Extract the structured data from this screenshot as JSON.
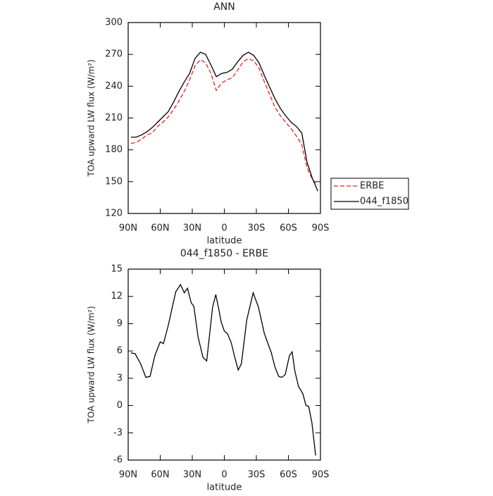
{
  "chart_data": [
    {
      "type": "line",
      "title": "ANN",
      "xlabel": "latitude",
      "ylabel": "TOA upward LW flux (W/m²)",
      "x": [
        87.5,
        82.5,
        77.5,
        72.5,
        67.5,
        62.5,
        57.5,
        52.5,
        47.5,
        42.5,
        37.5,
        32.5,
        27.5,
        22.5,
        17.5,
        12.5,
        7.5,
        2.5,
        -2.5,
        -7.5,
        -12.5,
        -17.5,
        -22.5,
        -27.5,
        -32.5,
        -37.5,
        -42.5,
        -47.5,
        -52.5,
        -57.5,
        -62.5,
        -67.5,
        -72.5,
        -77.5,
        -82.5,
        -87.5
      ],
      "series": [
        {
          "name": "ERBE",
          "color": "#e8221c",
          "linestyle": "dashed",
          "values": [
            186,
            187,
            190,
            194,
            196,
            202,
            206,
            211,
            218,
            226,
            235,
            246,
            259,
            265,
            262,
            252,
            236,
            243,
            246,
            248,
            255,
            263,
            266,
            264,
            257,
            244,
            232,
            220,
            212,
            206,
            200,
            193,
            185,
            163,
            152,
            147
          ]
        },
        {
          "name": "044_f1850",
          "color": "#000000",
          "linestyle": "solid",
          "values": [
            192,
            192,
            194,
            197,
            201,
            206,
            211,
            216,
            225,
            235,
            244,
            252,
            266,
            272,
            270,
            260,
            249,
            252,
            253,
            256,
            263,
            269,
            272,
            269,
            262,
            250,
            239,
            228,
            219,
            212,
            206,
            202,
            196,
            168,
            153,
            141
          ]
        }
      ],
      "xlim": [
        90,
        -90
      ],
      "xticks": [
        {
          "value": 90,
          "label": "90N"
        },
        {
          "value": 60,
          "label": "60N"
        },
        {
          "value": 30,
          "label": "30N"
        },
        0,
        {
          "value": -30,
          "label": "30S"
        },
        {
          "value": -60,
          "label": "60S"
        },
        {
          "value": -90,
          "label": "90S"
        }
      ],
      "ylim": [
        120,
        300
      ],
      "yticks": [
        120,
        150,
        180,
        210,
        240,
        270,
        300
      ],
      "legend": "outside-right"
    },
    {
      "type": "line",
      "title": "044_f1850 - ERBE",
      "xlabel": "latitude",
      "ylabel": "TOA upward LW flux (W/m²)",
      "x": [
        87.5,
        83.5,
        78,
        73.5,
        69.5,
        65,
        60,
        57,
        52.5,
        45.5,
        41,
        37.5,
        34.5,
        31,
        28.5,
        24.5,
        20,
        16.5,
        11,
        8,
        5,
        3,
        0,
        -3,
        -6.5,
        -10,
        -13,
        -16,
        -21,
        -27,
        -32,
        -37.5,
        -44,
        -47.5,
        -51,
        -54,
        -57,
        -61,
        -63.5,
        -66,
        -69.5,
        -73.5,
        -76.5,
        -79,
        -82,
        -85.5
      ],
      "series": [
        {
          "color": "#000000",
          "linestyle": "solid",
          "values": [
            5.8,
            5.7,
            4.5,
            3.1,
            3.2,
            5.5,
            7.0,
            6.8,
            8.8,
            12.5,
            13.3,
            12.4,
            12.9,
            11.3,
            10.9,
            7.5,
            5.3,
            4.9,
            10.8,
            12.2,
            10.5,
            9.2,
            8.2,
            7.9,
            6.9,
            5.2,
            3.9,
            4.6,
            9.4,
            12.4,
            10.8,
            7.9,
            5.8,
            4.2,
            3.2,
            3.1,
            3.4,
            5.5,
            5.9,
            3.8,
            2.1,
            1.3,
            0,
            -0.1,
            -1.9,
            -5.5
          ]
        }
      ],
      "xlim": [
        90,
        -90
      ],
      "xticks": [
        {
          "value": 90,
          "label": "90N"
        },
        {
          "value": 60,
          "label": "60N"
        },
        {
          "value": 30,
          "label": "30N"
        },
        0,
        {
          "value": -30,
          "label": "30S"
        },
        {
          "value": -60,
          "label": "60S"
        },
        {
          "value": -90,
          "label": "90S"
        }
      ],
      "ylim": [
        -6,
        15
      ],
      "yticks": [
        -6,
        -3,
        0,
        3,
        6,
        9,
        12,
        15
      ]
    }
  ]
}
